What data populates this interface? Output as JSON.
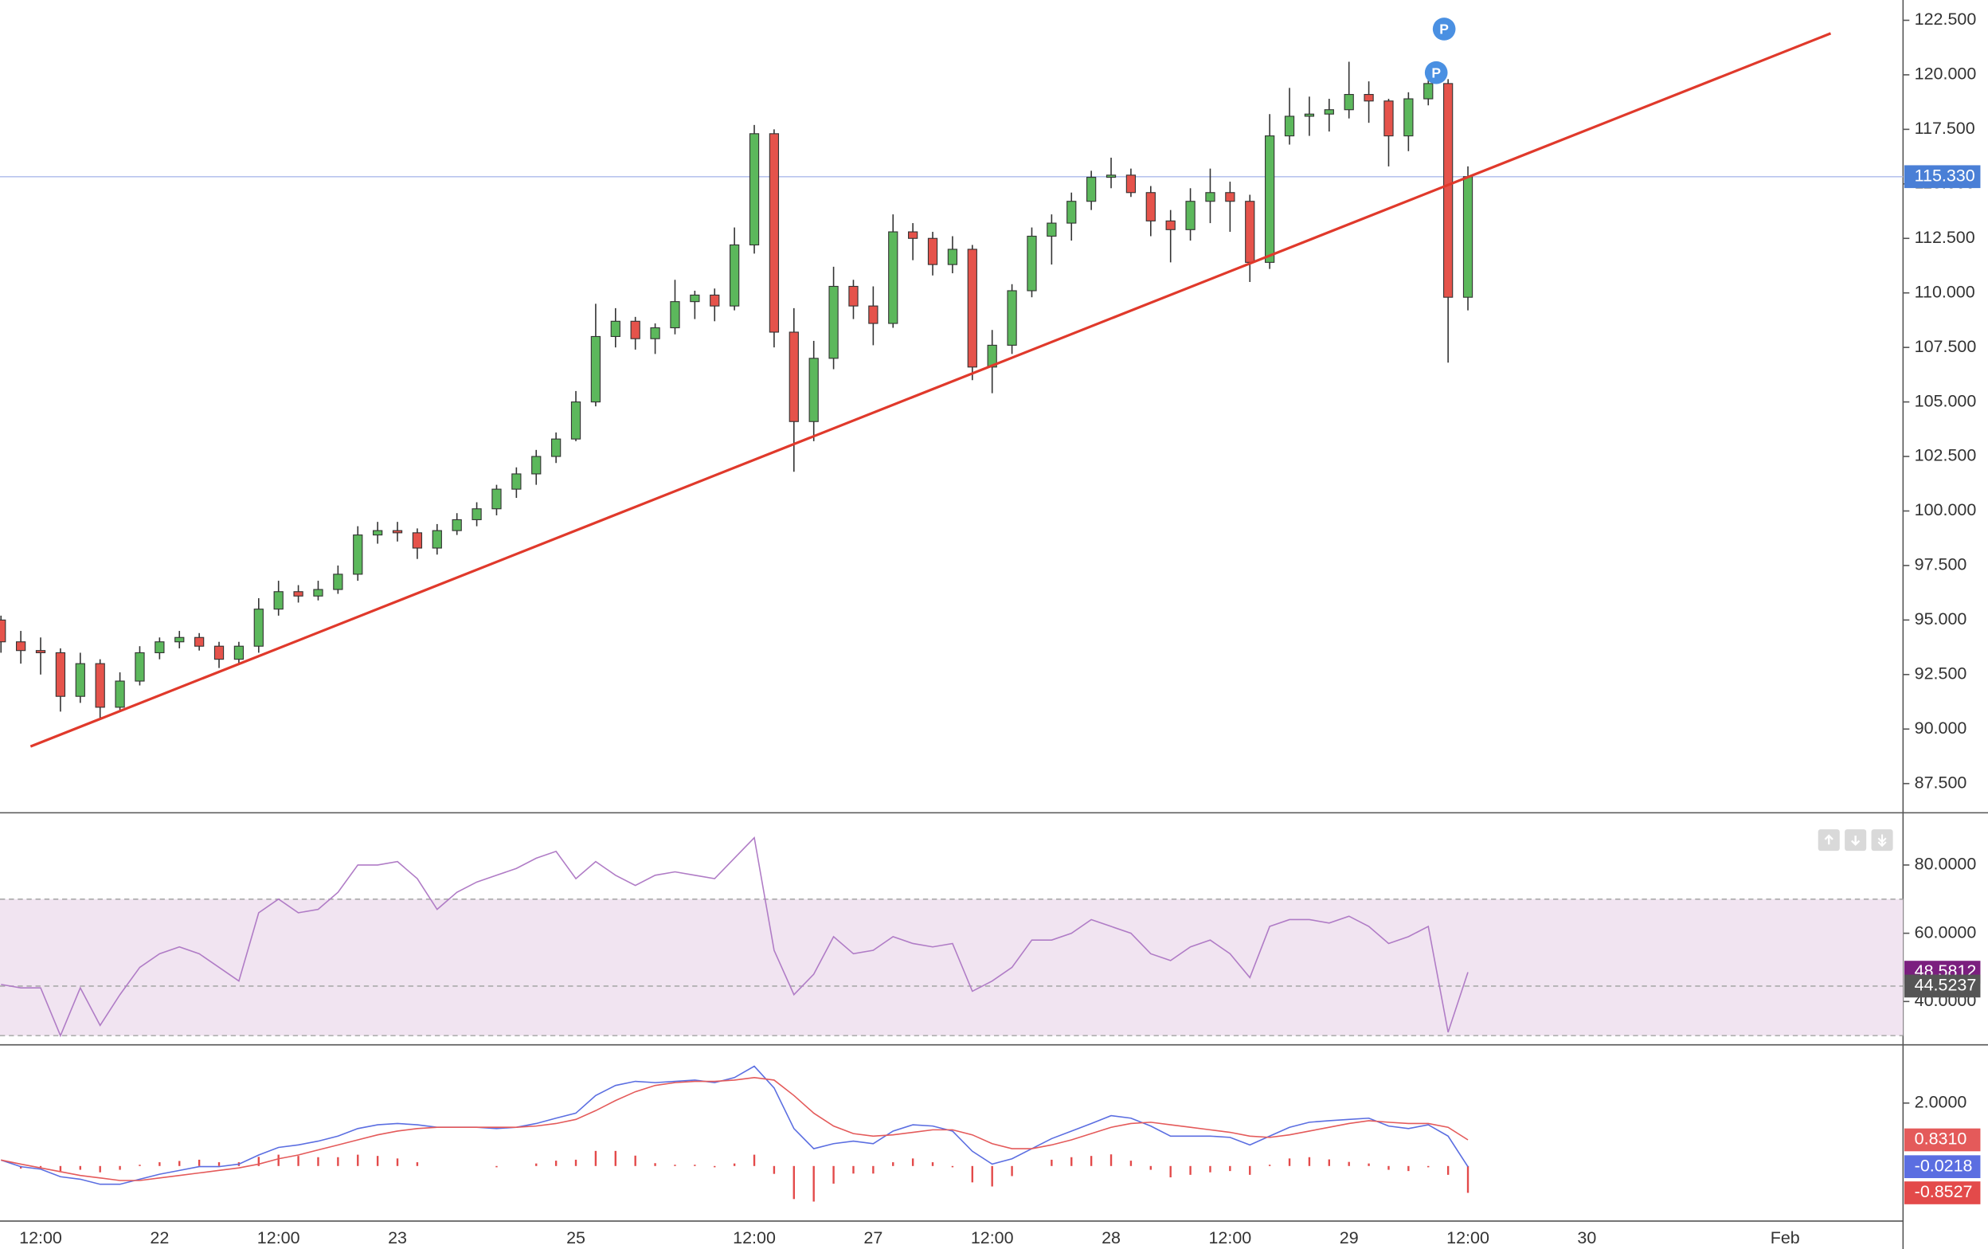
{
  "chart_data": [
    {
      "type": "candlestick",
      "categories": [
        null,
        null,
        "12:00",
        null,
        null,
        null,
        null,
        null,
        "22",
        null,
        null,
        null,
        null,
        null,
        "12:00",
        null,
        null,
        null,
        null,
        null,
        "23",
        null,
        null,
        null,
        null,
        null,
        null,
        null,
        null,
        "25",
        null,
        null,
        null,
        null,
        null,
        null,
        null,
        null,
        "12:00",
        null,
        null,
        null,
        null,
        null,
        "27",
        null,
        null,
        null,
        null,
        null,
        "12:00",
        null,
        null,
        null,
        null,
        null,
        "28",
        null,
        null,
        null,
        null,
        null,
        "12:00",
        null,
        null,
        null,
        null,
        null,
        "29",
        null,
        null,
        null,
        null,
        null,
        "12:00",
        null,
        null,
        null,
        null,
        null,
        "30",
        null,
        null,
        null,
        null,
        null,
        null,
        null,
        null,
        null,
        "Feb",
        null,
        null,
        null,
        null,
        null
      ],
      "open": [
        95,
        94,
        93.6,
        93.5,
        91.5,
        93,
        91,
        92.2,
        93.5,
        94,
        94.2,
        93.8,
        93.2,
        93.8,
        95.5,
        96.3,
        96.1,
        96.4,
        97.1,
        98.9,
        99.1,
        99,
        98.3,
        99.1,
        99.6,
        100.1,
        101,
        101.7,
        102.5,
        103.3,
        105,
        108,
        108.7,
        107.9,
        108.4,
        109.6,
        109.9,
        109.4,
        112.2,
        117.3,
        108.2,
        104.1,
        107,
        110.3,
        109.4,
        108.6,
        112.8,
        112.5,
        111.3,
        112,
        106.6,
        107.6,
        110.1,
        112.6,
        113.2,
        114.2,
        115.3,
        115.4,
        114.6,
        113.3,
        112.9,
        114.2,
        114.6,
        114.2,
        111.4,
        117.2,
        118.1,
        118.2,
        118.4,
        119.1,
        118.8,
        117.2,
        118.9,
        119.6,
        109.8,
        null,
        null,
        null,
        null,
        null,
        null,
        null,
        null,
        null,
        null,
        null,
        null,
        null,
        null,
        null,
        null,
        null,
        null,
        null,
        null,
        null
      ],
      "high": [
        95.2,
        94.5,
        94.2,
        93.7,
        93.5,
        93.2,
        92.6,
        93.8,
        94.2,
        94.5,
        94.4,
        94,
        94,
        96,
        96.8,
        96.6,
        96.8,
        97.5,
        99.3,
        99.5,
        99.5,
        99.2,
        99.4,
        99.9,
        100.4,
        101.2,
        102,
        102.8,
        103.6,
        105.5,
        109.5,
        109.3,
        108.9,
        108.6,
        110.6,
        110.1,
        110.2,
        113,
        117.7,
        117.5,
        109.3,
        107.8,
        111.2,
        110.6,
        110.3,
        113.6,
        113.2,
        112.8,
        112.6,
        112.2,
        108.3,
        110.4,
        113,
        113.6,
        114.6,
        115.6,
        116.2,
        115.7,
        114.9,
        113.8,
        114.8,
        115.7,
        115.1,
        114.5,
        118.2,
        119.4,
        119,
        118.9,
        120.6,
        119.7,
        118.9,
        119.2,
        120.1,
        119.8,
        115.8,
        null,
        null,
        null,
        null,
        null,
        null,
        null,
        null,
        null,
        null,
        null,
        null,
        null,
        null,
        null,
        null,
        null,
        null,
        null,
        null,
        null
      ],
      "low": [
        93.5,
        93,
        92.5,
        90.8,
        91.2,
        90.5,
        90.8,
        92,
        93.2,
        93.7,
        93.6,
        92.8,
        93,
        93.5,
        95.2,
        95.8,
        95.9,
        96.2,
        96.8,
        98.5,
        98.6,
        97.8,
        98,
        98.9,
        99.3,
        99.8,
        100.6,
        101.2,
        102.2,
        103.2,
        104.8,
        107.5,
        107.4,
        107.2,
        108.1,
        108.8,
        108.7,
        109.2,
        111.8,
        107.5,
        101.8,
        103.2,
        106.5,
        108.8,
        107.6,
        108.4,
        111.5,
        110.8,
        110.9,
        106,
        105.4,
        107.2,
        109.8,
        111.3,
        112.4,
        113.8,
        114.8,
        114.4,
        112.6,
        111.4,
        112.4,
        113.2,
        112.8,
        110.5,
        111.1,
        116.8,
        117.2,
        117.4,
        118,
        117.8,
        115.8,
        116.5,
        118.6,
        106.8,
        109.2,
        null,
        null,
        null,
        null,
        null,
        null,
        null,
        null,
        null,
        null,
        null,
        null,
        null,
        null,
        null,
        null,
        null,
        null,
        null,
        null,
        null
      ],
      "close": [
        94,
        93.6,
        93.5,
        91.5,
        93,
        91,
        92.2,
        93.5,
        94,
        94.2,
        93.8,
        93.2,
        93.8,
        95.5,
        96.3,
        96.1,
        96.4,
        97.1,
        98.9,
        99.1,
        99,
        98.3,
        99.1,
        99.6,
        100.1,
        101,
        101.7,
        102.5,
        103.3,
        105,
        108,
        108.7,
        107.9,
        108.4,
        109.6,
        109.9,
        109.4,
        112.2,
        117.3,
        108.2,
        104.1,
        107,
        110.3,
        109.4,
        108.6,
        112.8,
        112.5,
        111.3,
        112,
        106.6,
        107.6,
        110.1,
        112.6,
        113.2,
        114.2,
        115.3,
        115.4,
        114.6,
        113.3,
        112.9,
        114.2,
        114.6,
        114.2,
        111.4,
        117.2,
        118.1,
        118.2,
        118.4,
        119.1,
        118.8,
        117.2,
        118.9,
        119.6,
        109.8,
        115.33,
        null,
        null,
        null,
        null,
        null,
        null,
        null,
        null,
        null,
        null,
        null,
        null,
        null,
        null,
        null,
        null,
        null,
        null,
        null,
        null,
        null
      ],
      "up_color": "#5cb85c",
      "down_color": "#e5534b",
      "ylim": [
        86.16,
        123.43
      ],
      "yticks": [
        {
          "value": 87.5,
          "label": "87.500"
        },
        {
          "value": 90,
          "label": "90.000"
        },
        {
          "value": 92.5,
          "label": "92.500"
        },
        {
          "value": 95,
          "label": "95.000"
        },
        {
          "value": 97.5,
          "label": "97.500"
        },
        {
          "value": 100,
          "label": "100.000"
        },
        {
          "value": 102.5,
          "label": "102.500"
        },
        {
          "value": 105,
          "label": "105.000"
        },
        {
          "value": 107.5,
          "label": "107.500"
        },
        {
          "value": 110,
          "label": "110.000"
        },
        {
          "value": 112.5,
          "label": "112.500"
        },
        {
          "value": 115,
          "label": "115.000"
        },
        {
          "value": 117.5,
          "label": "117.500"
        },
        {
          "value": 120,
          "label": "120.000"
        },
        {
          "value": 122.5,
          "label": "122.500"
        }
      ],
      "last_price": {
        "value": 115.33,
        "label": "115.330",
        "color": "#4a7fd6"
      },
      "trendline": {
        "start": [
          1.49,
          89.2
        ],
        "end": [
          92.3,
          121.9
        ],
        "color": "#e0392b"
      },
      "markers": [
        {
          "label": "P",
          "x": 72.4,
          "y": 120.1,
          "color": "#4a90e2"
        },
        {
          "label": "P",
          "x": 72.8,
          "y": 122.1,
          "color": "#4a90e2"
        }
      ]
    },
    {
      "type": "line",
      "values": [
        45,
        44,
        44,
        30,
        44,
        33,
        42,
        50,
        54,
        56,
        54,
        50,
        46,
        66,
        70,
        66,
        67,
        72,
        80,
        80,
        81,
        76,
        67,
        72,
        75,
        77,
        79,
        82,
        84,
        76,
        81,
        77,
        74,
        77,
        78,
        77,
        76,
        82,
        88,
        55,
        42,
        48,
        59,
        54,
        55,
        59,
        57,
        56,
        57,
        43,
        46,
        50,
        58,
        58,
        60,
        64,
        62,
        60,
        54,
        52,
        56,
        58,
        54,
        47,
        62,
        64,
        64,
        63,
        65,
        62,
        57,
        59,
        62,
        31,
        48.5812,
        null,
        null,
        null,
        null,
        null,
        null,
        null,
        null,
        null,
        null,
        null,
        null,
        null,
        null,
        null,
        null,
        null,
        null,
        null,
        null,
        null
      ],
      "color": "#b07cc6",
      "last_label": "48.5812",
      "label_color": "#7b1f7f",
      "reference": {
        "value": 44.5237,
        "label": "44.5237",
        "color": "#555555"
      },
      "band": [
        30,
        70
      ],
      "band_color": "#f1e4f1",
      "ylim": [
        27.3,
        95.3
      ],
      "yticks": [
        {
          "value": 40,
          "label": "40.0000"
        },
        {
          "value": 60,
          "label": "60.0000"
        },
        {
          "value": 80,
          "label": "80.0000"
        }
      ]
    },
    {
      "type": "macd",
      "series": [
        {
          "color": "#5b6ee1",
          "last_label": "-0.0218",
          "values": [
            0.19,
            -0.02,
            -0.1,
            -0.34,
            -0.42,
            -0.58,
            -0.58,
            -0.42,
            -0.26,
            -0.14,
            -0.02,
            -0.02,
            0.06,
            0.35,
            0.59,
            0.67,
            0.79,
            0.95,
            1.19,
            1.31,
            1.35,
            1.31,
            1.23,
            1.23,
            1.23,
            1.19,
            1.23,
            1.35,
            1.52,
            1.68,
            2.24,
            2.56,
            2.69,
            2.65,
            2.69,
            2.73,
            2.65,
            2.81,
            3.17,
            2.48,
            1.19,
            0.55,
            0.71,
            0.79,
            0.71,
            1.11,
            1.31,
            1.27,
            1.11,
            0.47,
            0.06,
            0.23,
            0.55,
            0.87,
            1.11,
            1.35,
            1.6,
            1.52,
            1.27,
            0.95,
            0.95,
            0.95,
            0.91,
            0.67,
            0.95,
            1.23,
            1.39,
            1.44,
            1.48,
            1.52,
            1.27,
            1.19,
            1.31,
            0.95,
            -0.0218,
            null,
            null,
            null,
            null,
            null,
            null,
            null,
            null,
            null,
            null,
            null,
            null,
            null,
            null,
            null,
            null,
            null,
            null,
            null,
            null,
            null
          ]
        },
        {
          "color": "#e45a5a",
          "last_label": "0.8310",
          "values": [
            0.19,
            0.06,
            -0.06,
            -0.18,
            -0.3,
            -0.38,
            -0.46,
            -0.46,
            -0.38,
            -0.3,
            -0.22,
            -0.14,
            -0.06,
            0.06,
            0.23,
            0.35,
            0.51,
            0.67,
            0.83,
            0.99,
            1.11,
            1.19,
            1.23,
            1.23,
            1.23,
            1.23,
            1.23,
            1.27,
            1.35,
            1.48,
            1.76,
            2.08,
            2.36,
            2.56,
            2.65,
            2.69,
            2.69,
            2.73,
            2.81,
            2.73,
            2.24,
            1.68,
            1.27,
            1.03,
            0.95,
            0.99,
            1.07,
            1.15,
            1.15,
            0.99,
            0.71,
            0.55,
            0.55,
            0.67,
            0.83,
            1.03,
            1.23,
            1.35,
            1.39,
            1.31,
            1.23,
            1.15,
            1.07,
            0.95,
            0.91,
            0.99,
            1.11,
            1.23,
            1.35,
            1.44,
            1.39,
            1.35,
            1.35,
            1.23,
            0.831,
            null,
            null,
            null,
            null,
            null,
            null,
            null,
            null,
            null,
            null,
            null,
            null,
            null,
            null,
            null,
            null,
            null,
            null,
            null,
            null,
            null
          ]
        }
      ],
      "histogram": {
        "color": "#e34a4a",
        "last_label": "-0.8527",
        "values": [
          0,
          -0.08,
          -0.04,
          -0.16,
          -0.12,
          -0.2,
          -0.12,
          0.04,
          0.12,
          0.16,
          0.2,
          0.12,
          0.12,
          0.29,
          0.36,
          0.32,
          0.28,
          0.28,
          0.36,
          0.32,
          0.24,
          0.12,
          0,
          0,
          0,
          -0.04,
          0,
          0.08,
          0.17,
          0.2,
          0.48,
          0.48,
          0.33,
          0.09,
          0.04,
          0.04,
          -0.04,
          0.08,
          0.36,
          -0.25,
          -1.05,
          -1.13,
          -0.56,
          -0.24,
          -0.24,
          0.12,
          0.24,
          0.12,
          -0.04,
          -0.52,
          -0.65,
          -0.32,
          0,
          0.2,
          0.28,
          0.32,
          0.37,
          0.17,
          -0.12,
          -0.36,
          -0.28,
          -0.2,
          -0.16,
          -0.28,
          0.04,
          0.24,
          0.28,
          0.21,
          0.13,
          0.08,
          -0.12,
          -0.16,
          -0.04,
          -0.28,
          -0.8527,
          null,
          null,
          null,
          null,
          null,
          null,
          null,
          null,
          null,
          null,
          null,
          null,
          null,
          null,
          null,
          null,
          null,
          null,
          null,
          null,
          null
        ]
      },
      "ylim": [
        -1.75,
        3.85
      ],
      "yticks": [
        {
          "value": 2,
          "label": "2.0000"
        }
      ]
    }
  ]
}
